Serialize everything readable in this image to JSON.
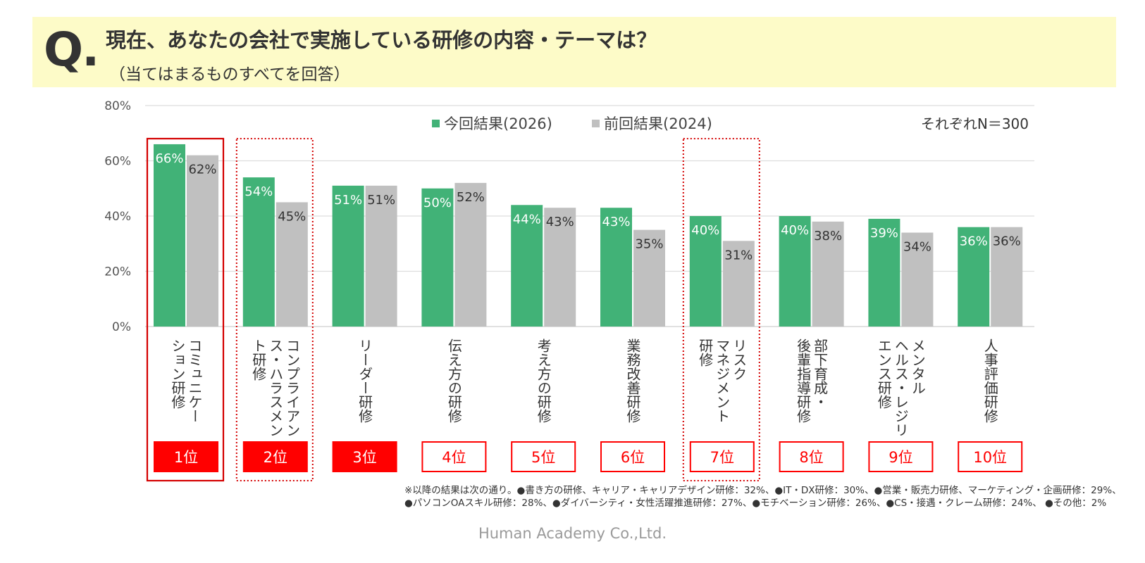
{
  "header": {
    "q_mark": "Q.",
    "title": "現在、あなたの会社で実施している研修の内容・テーマは？",
    "subtitle": "（当てはまるものすべてを回答）"
  },
  "chart_data": {
    "type": "bar",
    "y_ticks": [
      "0%",
      "20%",
      "40%",
      "60%",
      "80%"
    ],
    "ylim": [
      0,
      80
    ],
    "grid": true,
    "legend_position": "top",
    "n_label": "それぞれN＝300",
    "categories": [
      "コミュニケーション研修",
      "コンプライアンス・ハラスメント研修",
      "リーダー研修",
      "伝え方の研修",
      "考え方の研修",
      "業務改善研修",
      "リスクマネジメント研修",
      "部下育成・後輩指導研修",
      "メンタルヘルス・レジリエンス研修",
      "人事評価研修"
    ],
    "category_label_lines": [
      [
        "コミュニケー",
        "ション研修"
      ],
      [
        "コンプライアン",
        "ス・ハラスメン",
        "ト研修"
      ],
      [
        "リーダー研修"
      ],
      [
        "伝え方の研修"
      ],
      [
        "考え方の研修"
      ],
      [
        "業務改善研修"
      ],
      [
        "リスク",
        "マネジメント",
        "研修"
      ],
      [
        "部下育成・",
        "後輩指導研修"
      ],
      [
        "メンタル",
        "ヘルス・レジリ",
        "エンス研修"
      ],
      [
        "人事評価研修"
      ]
    ],
    "series": [
      {
        "name": "今回結果(2026)",
        "color": "#41b277",
        "values": [
          66,
          54,
          51,
          50,
          44,
          43,
          40,
          40,
          39,
          36
        ],
        "labels": [
          "66%",
          "54%",
          "51%",
          "50%",
          "44%",
          "43%",
          "40%",
          "40%",
          "39%",
          "36%"
        ]
      },
      {
        "name": "前回結果(2024)",
        "color": "#c0c0c0",
        "values": [
          62,
          45,
          51,
          52,
          43,
          35,
          31,
          38,
          34,
          36
        ],
        "labels": [
          "62%",
          "45%",
          "51%",
          "52%",
          "43%",
          "35%",
          "31%",
          "38%",
          "34%",
          "36%"
        ]
      }
    ],
    "ranks": [
      "1位",
      "2位",
      "3位",
      "4位",
      "5位",
      "6位",
      "7位",
      "8位",
      "9位",
      "10位"
    ],
    "rank_filled": [
      true,
      true,
      true,
      false,
      false,
      false,
      false,
      false,
      false,
      false
    ],
    "rank_color": "#ff0000",
    "highlights": [
      {
        "index": 0,
        "style": "solid"
      },
      {
        "index": 1,
        "style": "dotted"
      },
      {
        "index": 6,
        "style": "dotted"
      }
    ]
  },
  "footnote": {
    "line1": "※以降の結果は次の通り。●書き方の研修、キャリア・キャリアデザイン研修：32%、●IT・DX研修：30%、●営業・販売力研修、マーケティング・企画研修：29%、",
    "line2": "●パソコンOAスキル研修：28%、●ダイバーシティ・女性活躍推進研修：27%、●モチベーション研修：26%、●CS・接遇・クレーム研修：24%、 ●その他：2%"
  },
  "credit": "Human Academy Co.,Ltd."
}
